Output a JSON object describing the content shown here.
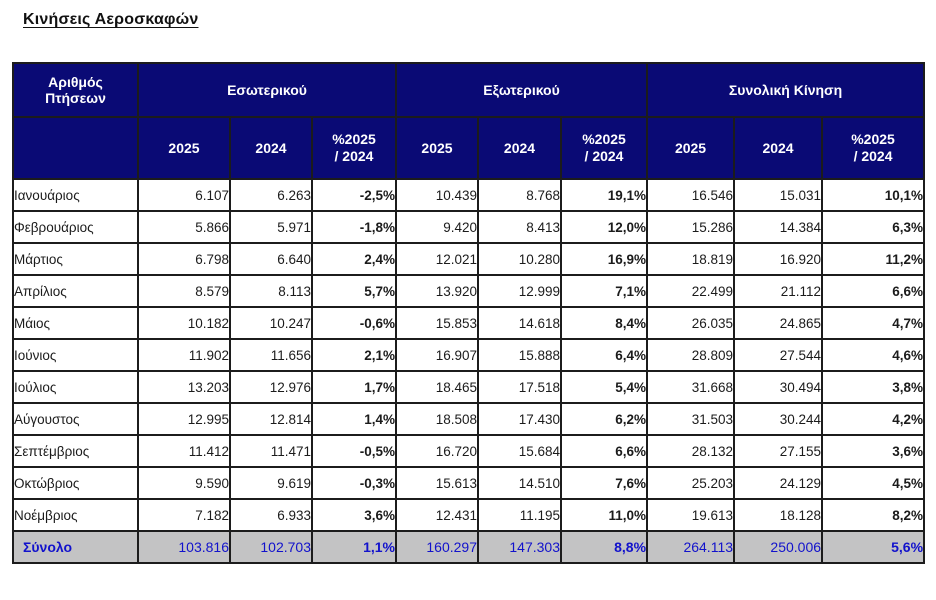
{
  "page": {
    "title": "Κινήσεις Αεροσκαφών"
  },
  "colors": {
    "header_background": "#0a0a75",
    "header_text": "#ffffff",
    "total_row_background": "#c3c3c4",
    "total_row_text": "#1212cc",
    "border": "#1c1c1c",
    "body_text": "#1b1b1b"
  },
  "table": {
    "corner_header": "Αριθμός\nΠτήσεων",
    "groups": [
      {
        "label": "Εσωτερικού"
      },
      {
        "label": "Εξωτερικού"
      },
      {
        "label": "Συνολική Κίνηση"
      }
    ],
    "sub_headers": [
      "2025",
      "2024",
      "%2025\n/ 2024"
    ],
    "rows": [
      {
        "month": "Ιανουάριος",
        "values": [
          "6.107",
          "6.263",
          "-2,5%",
          "10.439",
          "8.768",
          "19,1%",
          "16.546",
          "15.031",
          "10,1%"
        ]
      },
      {
        "month": "Φεβρουάριος",
        "values": [
          "5.866",
          "5.971",
          "-1,8%",
          "9.420",
          "8.413",
          "12,0%",
          "15.286",
          "14.384",
          "6,3%"
        ]
      },
      {
        "month": "Μάρτιος",
        "values": [
          "6.798",
          "6.640",
          "2,4%",
          "12.021",
          "10.280",
          "16,9%",
          "18.819",
          "16.920",
          "11,2%"
        ]
      },
      {
        "month": "Απρίλιος",
        "values": [
          "8.579",
          "8.113",
          "5,7%",
          "13.920",
          "12.999",
          "7,1%",
          "22.499",
          "21.112",
          "6,6%"
        ]
      },
      {
        "month": "Μάιος",
        "values": [
          "10.182",
          "10.247",
          "-0,6%",
          "15.853",
          "14.618",
          "8,4%",
          "26.035",
          "24.865",
          "4,7%"
        ]
      },
      {
        "month": "Ιούνιος",
        "values": [
          "11.902",
          "11.656",
          "2,1%",
          "16.907",
          "15.888",
          "6,4%",
          "28.809",
          "27.544",
          "4,6%"
        ]
      },
      {
        "month": "Ιούλιος",
        "values": [
          "13.203",
          "12.976",
          "1,7%",
          "18.465",
          "17.518",
          "5,4%",
          "31.668",
          "30.494",
          "3,8%"
        ]
      },
      {
        "month": "Αύγουστος",
        "values": [
          "12.995",
          "12.814",
          "1,4%",
          "18.508",
          "17.430",
          "6,2%",
          "31.503",
          "30.244",
          "4,2%"
        ]
      },
      {
        "month": "Σεπτέμβριος",
        "values": [
          "11.412",
          "11.471",
          "-0,5%",
          "16.720",
          "15.684",
          "6,6%",
          "28.132",
          "27.155",
          "3,6%"
        ]
      },
      {
        "month": "Οκτώβριος",
        "values": [
          "9.590",
          "9.619",
          "-0,3%",
          "15.613",
          "14.510",
          "7,6%",
          "25.203",
          "24.129",
          "4,5%"
        ]
      },
      {
        "month": "Νοέμβριος",
        "values": [
          "7.182",
          "6.933",
          "3,6%",
          "12.431",
          "11.195",
          "11,0%",
          "19.613",
          "18.128",
          "8,2%"
        ]
      }
    ],
    "total": {
      "label": "Σύνολο",
      "values": [
        "103.816",
        "102.703",
        "1,1%",
        "160.297",
        "147.303",
        "8,8%",
        "264.113",
        "250.006",
        "5,6%"
      ]
    }
  }
}
